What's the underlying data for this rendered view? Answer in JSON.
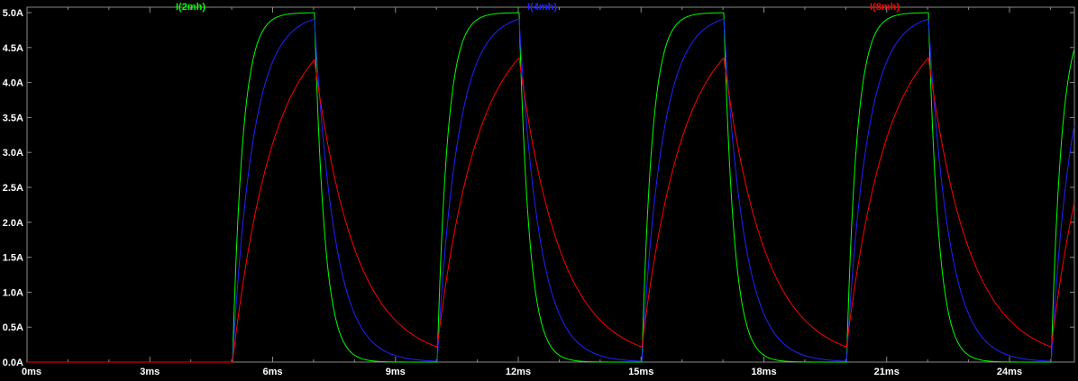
{
  "chart_data": {
    "type": "line",
    "title": "",
    "xlabel": "",
    "ylabel": "",
    "x_unit": "ms",
    "y_unit": "A",
    "xlim": [
      0,
      25.6
    ],
    "ylim": [
      0,
      5
    ],
    "grid": false,
    "legend_position": "top",
    "background_color": "#000000",
    "axis_color": "#8a8a8a",
    "tick_label_color": "#ffffff",
    "x_ticks": {
      "values": [
        0,
        3,
        6,
        9,
        12,
        15,
        18,
        21,
        24
      ],
      "labels": [
        "0ms",
        "3ms",
        "6ms",
        "9ms",
        "12ms",
        "15ms",
        "18ms",
        "21ms",
        "24ms"
      ],
      "minor_step_ms": 1
    },
    "y_ticks": {
      "values": [
        0,
        0.5,
        1,
        1.5,
        2,
        2.5,
        3,
        3.5,
        4,
        4.5,
        5
      ],
      "labels": [
        "0.0A",
        "0.5A",
        "1.0A",
        "1.5A",
        "2.0A",
        "2.5A",
        "3.0A",
        "3.5A",
        "4.0A",
        "4.5A",
        "5.0A"
      ]
    },
    "waveform": {
      "model": "RL pulse response",
      "amplitude_A": 5,
      "pulse_start_ms": 5,
      "pulse_on_ms": 2,
      "period_ms": 5,
      "num_cycles_visible": 4
    },
    "series": [
      {
        "name": "I(2mh)",
        "color": "#00ff00",
        "inductance_mH": 2,
        "tau_ms": 0.25,
        "peak_A": 5.0,
        "start_A": 0
      },
      {
        "name": "I(4mh)",
        "color": "#2222ff",
        "inductance_mH": 4,
        "tau_ms": 0.5,
        "peak_A": 4.9,
        "start_A": 0
      },
      {
        "name": "I(8mh)",
        "color": "#ff0000",
        "inductance_mH": 8,
        "tau_ms": 1.0,
        "peak_A": 4.35,
        "start_A": 0
      }
    ]
  }
}
